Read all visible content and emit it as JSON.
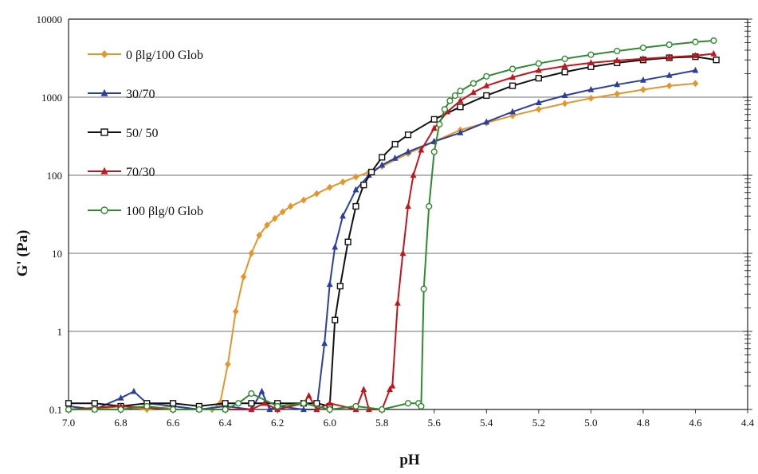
{
  "chart_data": {
    "type": "line",
    "xlabel": "pH",
    "ylabel": "G' (Pa)",
    "y_scale": "log",
    "xlim": [
      7.0,
      4.4
    ],
    "ylim": [
      0.1,
      10000
    ],
    "x_ticks": [
      "7.0",
      "6.8",
      "6.6",
      "6.4",
      "6.2",
      "6.0",
      "5.8",
      "5.6",
      "5.4",
      "5.2",
      "5.0",
      "4.8",
      "4.6",
      "4.4"
    ],
    "y_ticks": [
      "0.1",
      "1",
      "10",
      "100",
      "1000",
      "10000"
    ],
    "grid": "horizontal",
    "legend_position": "top-left",
    "series": [
      {
        "name": "0 βlg/100 Glob",
        "color": "#e3962b",
        "marker": "diamond",
        "x": [
          7.0,
          6.9,
          6.8,
          6.7,
          6.6,
          6.5,
          6.45,
          6.42,
          6.39,
          6.36,
          6.33,
          6.3,
          6.27,
          6.24,
          6.21,
          6.18,
          6.15,
          6.1,
          6.05,
          6.0,
          5.95,
          5.9,
          5.85,
          5.8,
          5.7,
          5.6,
          5.5,
          5.4,
          5.3,
          5.2,
          5.1,
          5.0,
          4.9,
          4.8,
          4.7,
          4.6
        ],
        "y": [
          0.11,
          0.1,
          0.11,
          0.1,
          0.11,
          0.1,
          0.1,
          0.12,
          0.38,
          1.8,
          5,
          10,
          17,
          23,
          28,
          34,
          40,
          48,
          58,
          70,
          82,
          95,
          110,
          130,
          190,
          270,
          380,
          470,
          580,
          700,
          830,
          970,
          1100,
          1250,
          1400,
          1500
        ]
      },
      {
        "name": "30/70",
        "color": "#2a3fa0",
        "marker": "triangle",
        "x": [
          7.0,
          6.9,
          6.8,
          6.75,
          6.7,
          6.6,
          6.5,
          6.4,
          6.3,
          6.26,
          6.23,
          6.2,
          6.1,
          6.05,
          6.02,
          6.0,
          5.98,
          5.95,
          5.9,
          5.85,
          5.8,
          5.75,
          5.7,
          5.6,
          5.5,
          5.4,
          5.3,
          5.2,
          5.1,
          5.0,
          4.9,
          4.8,
          4.7,
          4.6
        ],
        "y": [
          0.11,
          0.1,
          0.14,
          0.17,
          0.12,
          0.11,
          0.1,
          0.11,
          0.1,
          0.17,
          0.1,
          0.11,
          0.1,
          0.1,
          0.7,
          4,
          12,
          30,
          65,
          100,
          135,
          165,
          200,
          270,
          350,
          480,
          650,
          850,
          1050,
          1250,
          1450,
          1650,
          1900,
          2200
        ]
      },
      {
        "name": "50/ 50",
        "color": "#111111",
        "marker": "square",
        "x": [
          7.0,
          6.9,
          6.8,
          6.7,
          6.6,
          6.5,
          6.4,
          6.3,
          6.2,
          6.1,
          6.05,
          6.0,
          5.98,
          5.96,
          5.93,
          5.9,
          5.87,
          5.84,
          5.8,
          5.75,
          5.7,
          5.6,
          5.5,
          5.4,
          5.3,
          5.2,
          5.1,
          5.0,
          4.9,
          4.8,
          4.7,
          4.6,
          4.52
        ],
        "y": [
          0.12,
          0.12,
          0.11,
          0.12,
          0.12,
          0.11,
          0.12,
          0.12,
          0.12,
          0.12,
          0.12,
          0.11,
          1.4,
          3.8,
          14,
          40,
          75,
          110,
          170,
          250,
          330,
          520,
          750,
          1050,
          1400,
          1750,
          2100,
          2450,
          2750,
          3000,
          3200,
          3300,
          3000
        ]
      },
      {
        "name": "70/30",
        "color": "#c0171c",
        "marker": "triangle",
        "x": [
          7.0,
          6.8,
          6.6,
          6.4,
          6.3,
          6.25,
          6.2,
          6.1,
          6.08,
          6.05,
          6.0,
          5.9,
          5.87,
          5.85,
          5.8,
          5.77,
          5.76,
          5.74,
          5.72,
          5.7,
          5.68,
          5.65,
          5.6,
          5.55,
          5.5,
          5.45,
          5.4,
          5.3,
          5.2,
          5.1,
          5.0,
          4.9,
          4.8,
          4.7,
          4.6,
          4.53
        ],
        "y": [
          0.1,
          0.11,
          0.1,
          0.1,
          0.1,
          0.12,
          0.1,
          0.12,
          0.15,
          0.1,
          0.12,
          0.1,
          0.18,
          0.1,
          0.1,
          0.18,
          0.2,
          2.3,
          10,
          40,
          100,
          210,
          400,
          650,
          900,
          1150,
          1400,
          1800,
          2200,
          2500,
          2750,
          2950,
          3100,
          3250,
          3400,
          3600
        ]
      },
      {
        "name": "100 βlg/0 Glob",
        "color": "#2e8b2e",
        "marker": "circle",
        "x": [
          7.0,
          6.9,
          6.8,
          6.7,
          6.6,
          6.5,
          6.4,
          6.35,
          6.3,
          6.2,
          6.1,
          6.0,
          5.9,
          5.8,
          5.7,
          5.66,
          5.65,
          5.64,
          5.62,
          5.6,
          5.58,
          5.56,
          5.54,
          5.52,
          5.5,
          5.45,
          5.4,
          5.3,
          5.2,
          5.1,
          5.0,
          4.9,
          4.8,
          4.7,
          4.6,
          4.53
        ],
        "y": [
          0.1,
          0.1,
          0.1,
          0.11,
          0.1,
          0.1,
          0.1,
          0.12,
          0.16,
          0.11,
          0.12,
          0.1,
          0.11,
          0.1,
          0.12,
          0.12,
          0.11,
          3.5,
          40,
          200,
          450,
          700,
          900,
          1050,
          1200,
          1500,
          1850,
          2300,
          2700,
          3100,
          3500,
          3900,
          4300,
          4700,
          5100,
          5300
        ]
      }
    ]
  }
}
